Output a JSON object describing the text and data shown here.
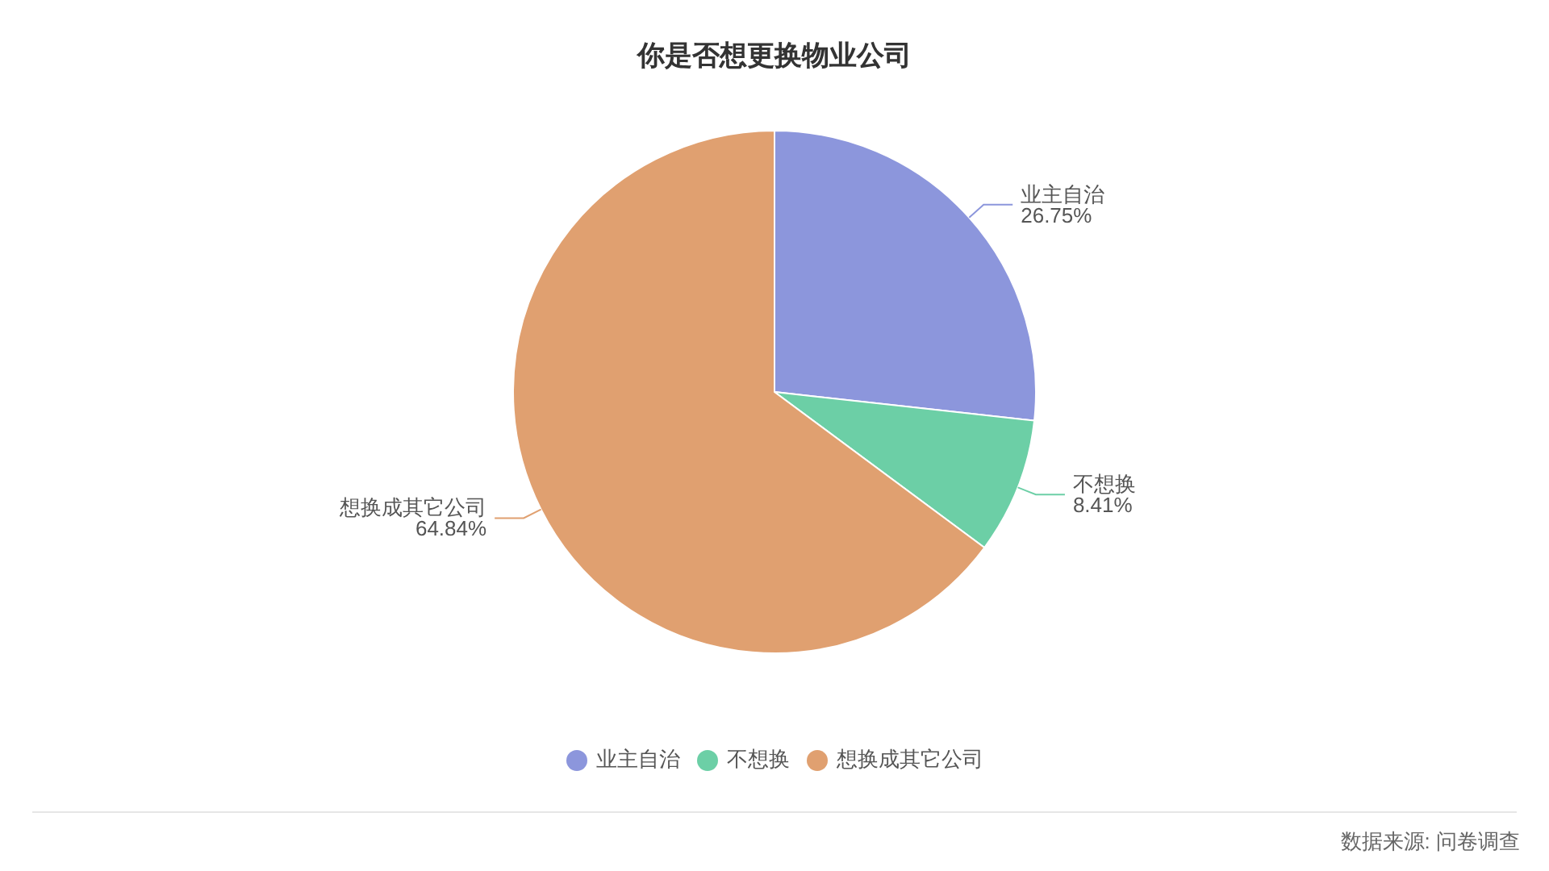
{
  "chart_data": {
    "type": "pie",
    "title": "你是否想更换物业公司",
    "categories": [
      "业主自治",
      "不想换",
      "想换成其它公司"
    ],
    "values": [
      26.75,
      8.41,
      64.84
    ],
    "colors": [
      "#8c96dc",
      "#6ccfa6",
      "#e0a070"
    ],
    "value_labels": [
      "26.75%",
      "8.41%",
      "64.84%"
    ],
    "legend": "bottom",
    "annotations": [
      "数据来源: 问卷调查"
    ]
  }
}
